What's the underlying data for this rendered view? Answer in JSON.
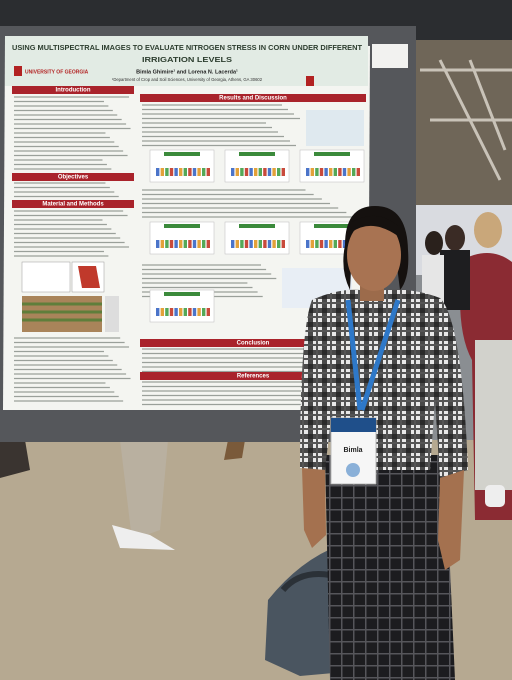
{
  "poster": {
    "title": [
      "USING MULTISPECTRAL IMAGES TO EVALUATE NITROGEN STRESS IN CORN UNDER DIFFERENT",
      "IRRIGATION LEVELS"
    ],
    "logo": "UNIVERSITY OF GEORGIA",
    "authors": "Bimla Ghimire¹ and Lorena N. Lacerda¹",
    "affiliation": "¹Department of Crop and Soil Sciences, University of Georgia, Athens, GA 30602",
    "sections": [
      "Introduction",
      "Objectives",
      "Material and Methods",
      "Results and Discussion",
      "Conclusion",
      "References"
    ]
  },
  "badge": {
    "name": "Bimla"
  }
}
